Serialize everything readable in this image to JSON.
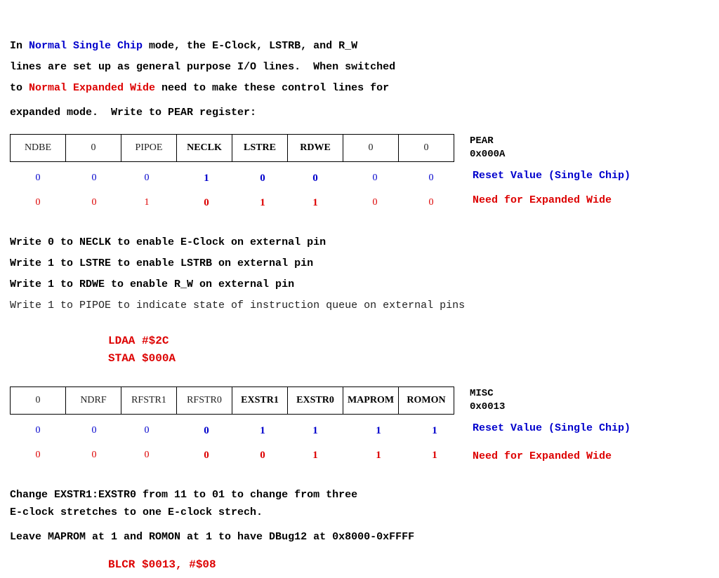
{
  "intro": {
    "l1_a": "In ",
    "l1_b": "Normal Single Chip",
    "l1_c": " mode, the E-Clock, LSTRB, and R_W",
    "l2": "lines are set up as general purpose I/O lines.  When switched",
    "l3_a": "to ",
    "l3_b": "Normal Expanded Wide",
    "l3_c": " need to make these control lines for",
    "l4": "expanded mode.  Write to PEAR register:"
  },
  "pear": {
    "name": "PEAR",
    "address": "0x000A",
    "bits": [
      "NDBE",
      "0",
      "PIPOE",
      "NECLK",
      "LSTRE",
      "RDWE",
      "0",
      "0"
    ],
    "reset": [
      "0",
      "0",
      "0",
      "1",
      "0",
      "0",
      "0",
      "0"
    ],
    "need": [
      "0",
      "0",
      "1",
      "0",
      "1",
      "1",
      "0",
      "0"
    ],
    "reset_label": "Reset Value (Single Chip)",
    "need_label": "Need for Expanded Wide"
  },
  "notes": {
    "n1": "Write 0 to NECLK to enable E-Clock on external pin",
    "n2": "Write 1 to LSTRE to enable LSTRB on external pin",
    "n3": "Write 1 to RDWE to enable R_W on external pin",
    "n4": "Write 1 to PIPOE to indicate state of instruction queue on external pins"
  },
  "code1": {
    "l1": "LDAA #$2C",
    "l2": "STAA $000A"
  },
  "misc": {
    "name": "MISC",
    "address": "0x0013",
    "bits": [
      "0",
      "NDRF",
      "RFSTR1",
      "RFSTR0",
      "EXSTR1",
      "EXSTR0",
      "MAPROM",
      "ROMON"
    ],
    "reset": [
      "0",
      "0",
      "0",
      "0",
      "1",
      "1",
      "1",
      "1"
    ],
    "need": [
      "0",
      "0",
      "0",
      "0",
      "0",
      "1",
      "1",
      "1"
    ],
    "reset_label": "Reset Value (Single Chip)",
    "need_label": "Need for Expanded Wide"
  },
  "footer": {
    "f1": "Change EXSTR1:EXSTR0 from 11 to 01 to change from three",
    "f2": "E-clock stretches to one E-clock strech.",
    "f3": "Leave MAPROM at 1 and ROMON at 1 to have DBug12 at 0x8000-0xFFFF"
  },
  "code2": {
    "l1": "BLCR $0013, #$08"
  }
}
